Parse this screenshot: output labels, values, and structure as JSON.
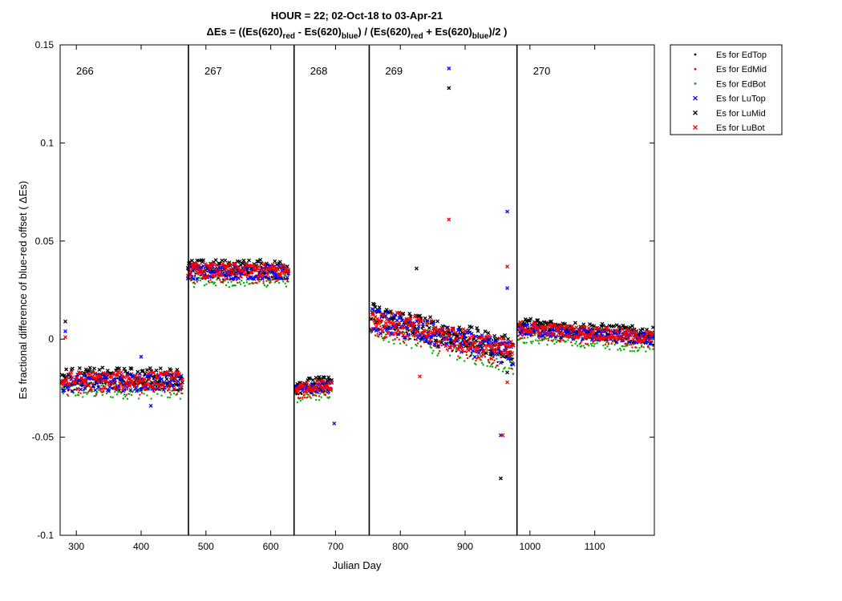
{
  "chart_data": {
    "type": "scatter",
    "title_line1": "HOUR = 22; 02-Oct-18 to 03-Apr-21",
    "title_line2": {
      "p1": "ΔEs = ((Es(620)",
      "s1": "red",
      "p2": " - Es(620)",
      "s2": "blue",
      "p3": ") / (Es(620)",
      "s3": "red",
      "p4": " + Es(620)",
      "s4": "blue",
      "p5": ")/2  )"
    },
    "xlabel": "Julian Day",
    "ylabel": "Es fractional difference of blue-red offset (   ΔEs)",
    "xlim": [
      275,
      1192
    ],
    "ylim": [
      -0.1,
      0.15
    ],
    "xticks": [
      300,
      400,
      500,
      600,
      700,
      800,
      900,
      1000,
      1100
    ],
    "xtick_labels": [
      "300",
      "400",
      "500",
      "600",
      "700",
      "800",
      "900",
      "1000",
      "1100"
    ],
    "yticks": [
      -0.1,
      -0.05,
      0,
      0.05,
      0.1,
      0.15
    ],
    "ytick_labels": [
      "-0.1",
      "-0.05",
      "0",
      "0.05",
      "0.1",
      "0.15"
    ],
    "grid": false,
    "legend_position": "outside-top-right",
    "deployment_boundaries": [
      473,
      636,
      752,
      980
    ],
    "deployments": [
      {
        "label": "266",
        "start": 275,
        "end": 473
      },
      {
        "label": "267",
        "start": 473,
        "end": 636
      },
      {
        "label": "268",
        "start": 636,
        "end": 752
      },
      {
        "label": "269",
        "start": 752,
        "end": 980
      },
      {
        "label": "270",
        "start": 980,
        "end": 1192
      }
    ],
    "segments": [
      {
        "x0": 278,
        "x1": 465,
        "y0": -0.022,
        "y1": -0.022,
        "spread": 0.0045
      },
      {
        "x0": 472,
        "x1": 628,
        "y0": 0.034,
        "y1": 0.034,
        "spread": 0.0035
      },
      {
        "x0": 638,
        "x1": 695,
        "y0": -0.026,
        "y1": -0.024,
        "spread": 0.0025
      },
      {
        "x0": 755,
        "x1": 975,
        "y0": 0.01,
        "y1": -0.008,
        "spread": 0.006
      },
      {
        "x0": 982,
        "x1": 1190,
        "y0": 0.005,
        "y1": 0.0,
        "spread": 0.003
      }
    ],
    "series": [
      {
        "name": "Es for EdTop",
        "marker": "dot",
        "color": "#000000",
        "offset": 0.0,
        "outliers": []
      },
      {
        "name": "Es for EdMid",
        "marker": "dot",
        "color": "#ff0000",
        "offset": -0.002,
        "outliers": []
      },
      {
        "name": "Es for EdBot",
        "marker": "dot",
        "color": "#00aa00",
        "offset": -0.004,
        "outliers": []
      },
      {
        "name": "Es for LuTop",
        "marker": "x",
        "color": "#0000ff",
        "offset": 0.0,
        "outliers": [
          [
            283,
            0.004
          ],
          [
            400,
            -0.009
          ],
          [
            415,
            -0.034
          ],
          [
            698,
            -0.043
          ],
          [
            875,
            0.138
          ],
          [
            955,
            -0.049
          ],
          [
            965,
            0.065
          ],
          [
            965,
            0.026
          ]
        ]
      },
      {
        "name": "Es for LuMid",
        "marker": "x",
        "color": "#000000",
        "offset": 0.003,
        "outliers": [
          [
            283,
            0.009
          ],
          [
            825,
            0.036
          ],
          [
            875,
            0.128
          ],
          [
            955,
            -0.071
          ],
          [
            965,
            -0.017
          ]
        ]
      },
      {
        "name": "Es for LuBot",
        "marker": "x",
        "color": "#ff0000",
        "offset": 0.001,
        "outliers": [
          [
            283,
            0.001
          ],
          [
            830,
            -0.019
          ],
          [
            875,
            0.061
          ],
          [
            958,
            -0.049
          ],
          [
            965,
            0.037
          ],
          [
            965,
            -0.022
          ]
        ]
      }
    ]
  }
}
